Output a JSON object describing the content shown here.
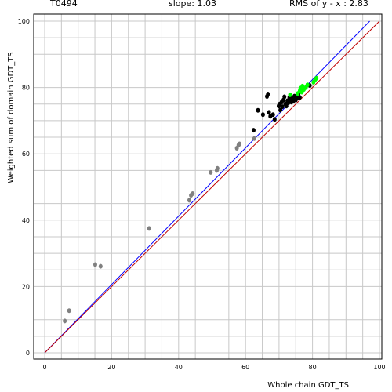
{
  "header": {
    "target": "T0494",
    "slope": "slope: 1.03",
    "rms": "RMS of  y - x : 2.83"
  },
  "chart_data": {
    "type": "scatter",
    "xlabel": "Whole chain GDT_TS",
    "ylabel": "Weighted sum of domain GDT_TS",
    "xlim": [
      0,
      100
    ],
    "ylim": [
      0,
      100
    ],
    "xticks": [
      0,
      20,
      40,
      60,
      80,
      100
    ],
    "yticks": [
      0,
      20,
      40,
      60,
      80,
      100
    ],
    "grid": true,
    "colors": {
      "gray": "#808080",
      "black": "#000000",
      "green": "#00ff00",
      "blue_line": "#0000ff",
      "red_line": "#c00000",
      "grid": "#c8c8c8"
    },
    "lines": [
      {
        "color": "blue",
        "slope": 1.03,
        "intercept": 0
      },
      {
        "color": "red",
        "slope": 1.0,
        "intercept": 0
      }
    ],
    "series": [
      {
        "color": "gray",
        "points": [
          [
            6.0,
            9.6
          ],
          [
            7.3,
            12.7
          ],
          [
            15.1,
            26.6
          ],
          [
            16.7,
            26.1
          ],
          [
            31.2,
            37.5
          ],
          [
            43.2,
            46.0
          ],
          [
            43.7,
            47.5
          ],
          [
            44.2,
            48.0
          ],
          [
            49.6,
            54.4
          ],
          [
            51.4,
            55.0
          ],
          [
            51.6,
            55.6
          ],
          [
            57.4,
            61.7
          ],
          [
            57.9,
            62.6
          ],
          [
            58.2,
            63.0
          ],
          [
            62.6,
            64.6
          ]
        ]
      },
      {
        "color": "black",
        "points": [
          [
            62.4,
            67.1
          ],
          [
            63.7,
            73.1
          ],
          [
            65.2,
            71.8
          ],
          [
            66.4,
            77.3
          ],
          [
            66.7,
            78.0
          ],
          [
            67.0,
            72.5
          ],
          [
            67.4,
            71.3
          ],
          [
            68.2,
            71.8
          ],
          [
            68.7,
            70.4
          ],
          [
            69.9,
            74.4
          ],
          [
            70.2,
            75.0
          ],
          [
            70.4,
            73.2
          ],
          [
            70.8,
            75.6
          ],
          [
            71.0,
            74.2
          ],
          [
            71.3,
            76.2
          ],
          [
            71.6,
            77.2
          ],
          [
            71.9,
            75.0
          ],
          [
            72.2,
            74.4
          ],
          [
            72.5,
            76.0
          ],
          [
            72.8,
            75.4
          ],
          [
            73.1,
            77.0
          ],
          [
            73.4,
            76.4
          ],
          [
            73.7,
            75.6
          ],
          [
            74.0,
            76.8
          ],
          [
            74.3,
            76.0
          ],
          [
            74.6,
            77.4
          ],
          [
            75.0,
            76.2
          ],
          [
            75.4,
            76.8
          ],
          [
            75.8,
            78.0
          ],
          [
            76.2,
            77.0
          ],
          [
            79.2,
            80.6
          ]
        ]
      },
      {
        "color": "green",
        "points": [
          [
            73.3,
            77.8
          ],
          [
            75.6,
            78.2
          ],
          [
            76.2,
            79.0
          ],
          [
            76.4,
            79.8
          ],
          [
            76.8,
            78.6
          ],
          [
            77.0,
            80.4
          ],
          [
            77.4,
            79.4
          ],
          [
            78.0,
            80.0
          ],
          [
            78.5,
            80.8
          ],
          [
            80.3,
            81.6
          ],
          [
            80.8,
            82.4
          ],
          [
            81.2,
            82.8
          ]
        ]
      }
    ]
  }
}
